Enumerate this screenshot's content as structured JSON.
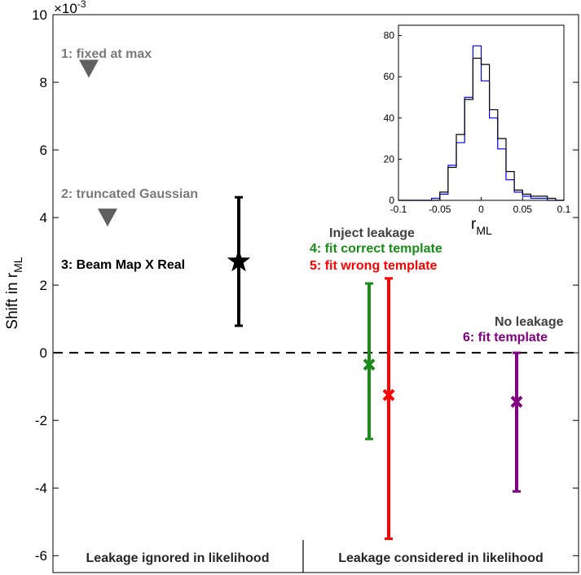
{
  "chart_data": [
    {
      "type": "scatter",
      "ylabel": "Shift in r",
      "ylabel_sub": "ML",
      "y_exponent_base": "×10",
      "y_exponent": "-3",
      "ylim": [
        -6.5,
        10
      ],
      "yticks": [
        -6,
        -4,
        -2,
        0,
        2,
        4,
        6,
        8,
        10
      ],
      "xlim": [
        0,
        1
      ],
      "reference_line": {
        "y": 0,
        "style": "dashed"
      },
      "regions": [
        "Leakage ignored in likelihood",
        "Leakage considered in likelihood"
      ],
      "upper_limits": [
        {
          "label": "1: fixed at max",
          "y": 8.4,
          "color": "#606060",
          "marker": "down-triangle"
        },
        {
          "label": "2: truncated Gaussian",
          "y": 4.0,
          "color": "#606060",
          "marker": "down-triangle"
        }
      ],
      "points": [
        {
          "label": "3: Beam Map X Real",
          "y": 2.7,
          "err_low": 0.8,
          "err_high": 4.6,
          "color": "#000000",
          "marker": "star"
        },
        {
          "label": "4: fit correct template",
          "y": -0.35,
          "err_low": -2.55,
          "err_high": 2.05,
          "color": "#1a8a1a",
          "marker": "x"
        },
        {
          "label": "5: fit wrong template",
          "y": -1.25,
          "err_low": -5.5,
          "err_high": 2.2,
          "color": "#ff0000",
          "marker": "x"
        },
        {
          "label": "6: fit template",
          "y": -1.45,
          "err_low": -4.1,
          "err_high": 0.0,
          "color": "#800080",
          "marker": "x"
        }
      ],
      "group_labels": [
        "Inject leakage",
        "No leakage"
      ],
      "group_label_color": "#404040"
    },
    {
      "type": "histogram",
      "xlabel": "r",
      "xlabel_sub": "ML",
      "xlim": [
        -0.1,
        0.1
      ],
      "ylim": [
        0,
        85
      ],
      "xticks": [
        -0.1,
        -0.05,
        0,
        0.05,
        0.1
      ],
      "yticks": [
        0,
        20,
        40,
        60,
        80
      ],
      "bin_edges": [
        -0.1,
        -0.09,
        -0.08,
        -0.07,
        -0.06,
        -0.05,
        -0.04,
        -0.03,
        -0.02,
        -0.01,
        0,
        0.01,
        0.02,
        0.03,
        0.04,
        0.05,
        0.06,
        0.07,
        0.08,
        0.09,
        0.1
      ],
      "series": [
        {
          "color": "#0000ff",
          "values": [
            0,
            0,
            0,
            0,
            1,
            3,
            17,
            28,
            50,
            75,
            58,
            40,
            25,
            10,
            4,
            2,
            1,
            1,
            0,
            0
          ]
        },
        {
          "color": "#000000",
          "values": [
            0,
            0,
            0,
            0,
            0,
            4,
            16,
            32,
            49,
            69,
            66,
            44,
            30,
            14,
            5,
            3,
            2,
            2,
            1,
            0
          ]
        }
      ]
    }
  ]
}
